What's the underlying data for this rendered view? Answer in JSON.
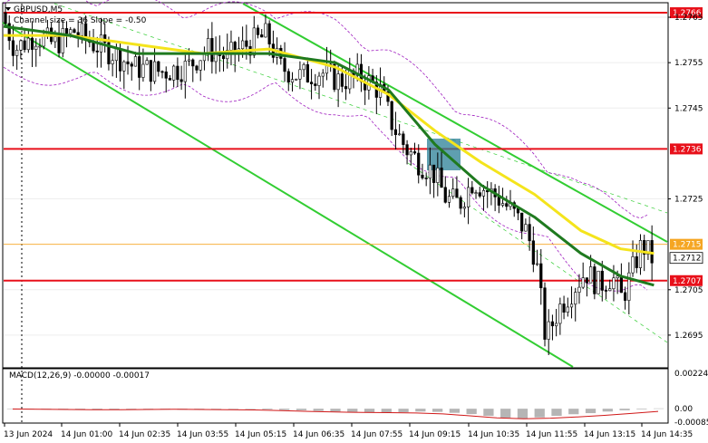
{
  "window": {
    "symbol_label": "GBPUSD,M5",
    "indicator_label": "Channel size = 36 Slope = -0.50"
  },
  "chart_data": {
    "type": "candlestick",
    "symbol": "GBPUSD",
    "timeframe": "M5",
    "price_axis": {
      "min": 1.2688,
      "max": 1.2768,
      "tick_labels": [
        "1.2765",
        "1.2755",
        "1.2745",
        "1.2725",
        "1.2705",
        "1.2695"
      ]
    },
    "time_axis_labels": [
      "13 Jun 2024",
      "14 Jun 01:00",
      "14 Jun 02:35",
      "14 Jun 03:55",
      "14 Jun 05:15",
      "14 Jun 06:35",
      "14 Jun 07:55",
      "14 Jun 09:15",
      "14 Jun 10:35",
      "14 Jun 11:55",
      "14 Jun 13:15",
      "14 Jun 14:35"
    ],
    "levels": [
      {
        "label": "1.2766",
        "value": 1.2766,
        "color": "#e8101a"
      },
      {
        "label": "1.2736",
        "value": 1.2736,
        "color": "#e8101a"
      },
      {
        "label": "1.2707",
        "value": 1.2707,
        "color": "#e8101a"
      }
    ],
    "current_price": {
      "label": "1.2712",
      "value": 1.2712
    },
    "ask_price": {
      "label": "1.2715",
      "value": 1.2715,
      "color": "#f5a623"
    },
    "price_series": [
      {
        "t": 0,
        "p": 1.2766
      },
      {
        "t": 0.02,
        "p": 1.2758
      },
      {
        "t": 0.05,
        "p": 1.2761
      },
      {
        "t": 0.08,
        "p": 1.2759
      },
      {
        "t": 0.11,
        "p": 1.2762
      },
      {
        "t": 0.14,
        "p": 1.2759
      },
      {
        "t": 0.17,
        "p": 1.2757
      },
      {
        "t": 0.2,
        "p": 1.2754
      },
      {
        "t": 0.24,
        "p": 1.2753
      },
      {
        "t": 0.28,
        "p": 1.2754
      },
      {
        "t": 0.31,
        "p": 1.2758
      },
      {
        "t": 0.34,
        "p": 1.2756
      },
      {
        "t": 0.37,
        "p": 1.2759
      },
      {
        "t": 0.4,
        "p": 1.2761
      },
      {
        "t": 0.42,
        "p": 1.2754
      },
      {
        "t": 0.45,
        "p": 1.2752
      },
      {
        "t": 0.48,
        "p": 1.2753
      },
      {
        "t": 0.51,
        "p": 1.2751
      },
      {
        "t": 0.54,
        "p": 1.2752
      },
      {
        "t": 0.57,
        "p": 1.2749
      },
      {
        "t": 0.59,
        "p": 1.2741
      },
      {
        "t": 0.61,
        "p": 1.2736
      },
      {
        "t": 0.63,
        "p": 1.2733
      },
      {
        "t": 0.65,
        "p": 1.2731
      },
      {
        "t": 0.67,
        "p": 1.2725
      },
      {
        "t": 0.69,
        "p": 1.2724
      },
      {
        "t": 0.71,
        "p": 1.2729
      },
      {
        "t": 0.73,
        "p": 1.2727
      },
      {
        "t": 0.75,
        "p": 1.2725
      },
      {
        "t": 0.77,
        "p": 1.2722
      },
      {
        "t": 0.79,
        "p": 1.2718
      },
      {
        "t": 0.805,
        "p": 1.2712
      },
      {
        "t": 0.82,
        "p": 1.2694
      },
      {
        "t": 0.84,
        "p": 1.2701
      },
      {
        "t": 0.86,
        "p": 1.2705
      },
      {
        "t": 0.88,
        "p": 1.2709
      },
      {
        "t": 0.9,
        "p": 1.2706
      },
      {
        "t": 0.92,
        "p": 1.2708
      },
      {
        "t": 0.935,
        "p": 1.2703
      },
      {
        "t": 0.95,
        "p": 1.2709
      },
      {
        "t": 0.965,
        "p": 1.2715
      },
      {
        "t": 0.98,
        "p": 1.2712
      }
    ],
    "ma_fast_series": [
      {
        "t": 0,
        "p": 1.2761
      },
      {
        "t": 0.1,
        "p": 1.2761
      },
      {
        "t": 0.2,
        "p": 1.2759
      },
      {
        "t": 0.3,
        "p": 1.2757
      },
      {
        "t": 0.4,
        "p": 1.2758
      },
      {
        "t": 0.5,
        "p": 1.2754
      },
      {
        "t": 0.58,
        "p": 1.2748
      },
      {
        "t": 0.65,
        "p": 1.274
      },
      {
        "t": 0.72,
        "p": 1.2733
      },
      {
        "t": 0.8,
        "p": 1.2726
      },
      {
        "t": 0.87,
        "p": 1.2718
      },
      {
        "t": 0.93,
        "p": 1.2714
      },
      {
        "t": 0.98,
        "p": 1.2713
      }
    ],
    "ma_slow_series": [
      {
        "t": 0,
        "p": 1.2763
      },
      {
        "t": 0.1,
        "p": 1.2761
      },
      {
        "t": 0.2,
        "p": 1.2757
      },
      {
        "t": 0.3,
        "p": 1.2757
      },
      {
        "t": 0.4,
        "p": 1.2757
      },
      {
        "t": 0.5,
        "p": 1.2755
      },
      {
        "t": 0.58,
        "p": 1.2749
      },
      {
        "t": 0.65,
        "p": 1.2737
      },
      {
        "t": 0.72,
        "p": 1.2728
      },
      {
        "t": 0.8,
        "p": 1.2721
      },
      {
        "t": 0.87,
        "p": 1.2713
      },
      {
        "t": 0.93,
        "p": 1.2708
      },
      {
        "t": 0.98,
        "p": 1.2706
      }
    ],
    "macd": {
      "label": "MACD(12,26,9) -0.00000 -0.00017",
      "axis_labels": [
        "0.00224",
        "0.00",
        "-0.00085"
      ],
      "min": -0.00085,
      "max": 0.00224,
      "histogram": [
        0.0,
        -3e-05,
        -5e-05,
        -4e-05,
        -6e-05,
        -8e-05,
        -6e-05,
        -4e-05,
        -3e-05,
        -5e-05,
        -6e-05,
        -4e-05,
        -3e-05,
        -2e-05,
        -3e-05,
        -5e-05,
        -8e-05,
        -0.0001,
        -0.00014,
        -0.00018,
        -0.0002,
        -0.00024,
        -0.00026,
        -0.00022,
        -0.00018,
        -0.0002,
        -0.00026,
        -0.00034,
        -0.00045,
        -0.00058,
        -0.00063,
        -0.00055,
        -0.00045,
        -0.00035,
        -0.00028,
        -0.00018,
        -0.0001,
        -4e-05,
        2e-05
      ],
      "signal": [
        -2e-05,
        -4e-05,
        -5e-05,
        -6e-05,
        -6e-05,
        -5e-05,
        -4e-05,
        -5e-05,
        -6e-05,
        -8e-05,
        -0.00012,
        -0.00017,
        -0.00021,
        -0.00024,
        -0.00025,
        -0.00027,
        -0.00033,
        -0.00045,
        -0.00058,
        -0.00063,
        -0.0006,
        -0.00052,
        -0.00042,
        -0.0003,
        -0.00017
      ]
    }
  }
}
